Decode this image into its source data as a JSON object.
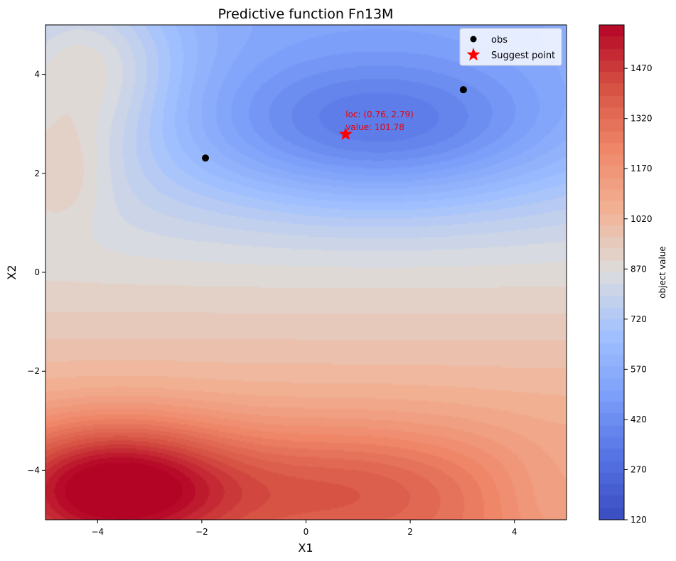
{
  "chart_data": {
    "type": "heatmap",
    "title": "Predictive function Fn13M",
    "xlabel": "X1",
    "ylabel": "X2",
    "xlim": [
      -5,
      5
    ],
    "ylim": [
      -5,
      5
    ],
    "x_ticks": [
      -4,
      -2,
      0,
      2,
      4
    ],
    "y_ticks": [
      -4,
      -2,
      0,
      2,
      4
    ],
    "x_tick_labels": [
      "−4",
      "−2",
      "0",
      "2",
      "4"
    ],
    "y_tick_labels": [
      "−4",
      "−2",
      "0",
      "2",
      "4"
    ],
    "colormap": "coolwarm",
    "colorbar": {
      "label": "object value",
      "range": [
        120,
        1600
      ],
      "ticks": [
        120,
        270,
        420,
        570,
        720,
        870,
        1020,
        1170,
        1320,
        1470
      ],
      "tick_labels": [
        "120",
        "270",
        "420",
        "570",
        "720",
        "870",
        "1020",
        "1170",
        "1320",
        "1470"
      ]
    },
    "surface": {
      "base": 880,
      "slope_x2": -62,
      "bumps": [
        {
          "x": -3.7,
          "y": -4.3,
          "amp": 520,
          "sx": 1.6,
          "sy": 0.9
        },
        {
          "x": 0.8,
          "y": -4.3,
          "amp": 230,
          "sx": 2.2,
          "sy": 0.9
        },
        {
          "x": 4.8,
          "y": -4.8,
          "amp": -90,
          "sx": 0.9,
          "sy": 0.9
        },
        {
          "x": 1.4,
          "y": 2.9,
          "amp": -360,
          "sx": 2.6,
          "sy": 1.1
        },
        {
          "x": -4.3,
          "y": 4.3,
          "amp": 280,
          "sx": 1.3,
          "sy": 1.4
        },
        {
          "x": -4.8,
          "y": 2.0,
          "amp": 120,
          "sx": 0.7,
          "sy": 0.8
        }
      ]
    },
    "series": [
      {
        "name": "obs",
        "type": "scatter",
        "color": "#000000",
        "points": [
          [
            -1.93,
            2.31
          ],
          [
            3.02,
            3.69
          ]
        ]
      },
      {
        "name": "Suggest point",
        "type": "scatter",
        "marker": "star",
        "color": "#ff0000",
        "points": [
          [
            0.76,
            2.79
          ]
        ]
      }
    ],
    "annotations": [
      {
        "text": "loc: (0.76, 2.79)",
        "x": 0.76,
        "y": 2.79
      },
      {
        "text": "value: 101.78",
        "x": 0.76,
        "y": 2.79
      }
    ],
    "legend": {
      "position": "top-right"
    },
    "grid": false
  }
}
